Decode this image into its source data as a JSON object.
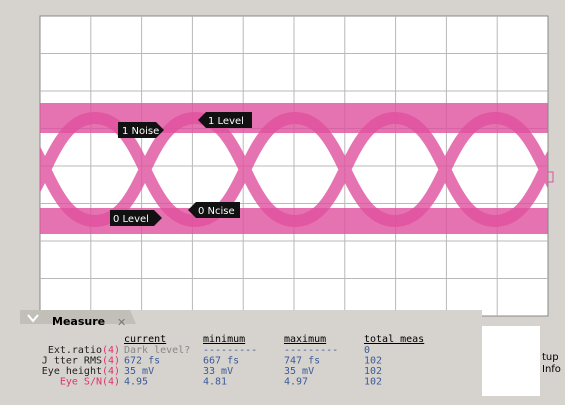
{
  "markers": {
    "one_noise": "1 Noise",
    "one_level": "1 Level",
    "zero_level": "0 Level",
    "zero_noise": "0 Ncise"
  },
  "measure": {
    "title": "Measure",
    "columns": [
      "current",
      "minimum",
      "maximum",
      "total meas"
    ],
    "rows": [
      {
        "label": "Ext.ratio",
        "channel": "(4)",
        "cells": [
          "Dark level?",
          "---------",
          "---------",
          "0"
        ]
      },
      {
        "label": "J tter RMS",
        "channel": "(4)",
        "cells": [
          "672 fs",
          "667 fs",
          "747 fs",
          "102"
        ]
      },
      {
        "label": "Eye height",
        "channel": "(4)",
        "cells": [
          "35 mV",
          "33 mV",
          "35 mV",
          "102"
        ]
      },
      {
        "label": "Eye S/N",
        "channel": "(4)",
        "cells": [
          "4.95",
          "4.81",
          "4.97",
          "102"
        ]
      }
    ]
  },
  "side_button": {
    "line1": "tup",
    "line2": "Info"
  }
}
